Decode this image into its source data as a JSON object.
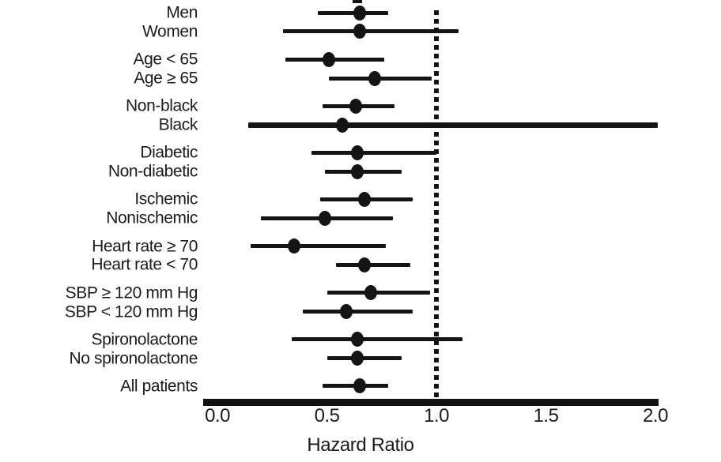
{
  "colors": {
    "ink": "#141414",
    "background": "#ffffff"
  },
  "chart_data": {
    "type": "scatter",
    "variant": "forest-plot",
    "title": "",
    "xlabel": "Hazard Ratio",
    "ylabel": "",
    "xlim": [
      -0.07,
      2.08
    ],
    "grid": false,
    "legend": "none",
    "reference_line_x": 1.0,
    "reference_line_style": "dotted",
    "x_ticks": [
      {
        "label": "0.0",
        "value": 0.0
      },
      {
        "label": "0.5",
        "value": 0.5
      },
      {
        "label": "1.0",
        "value": 1.0
      },
      {
        "label": "1.5",
        "value": 1.5
      },
      {
        "label": "2.0",
        "value": 2.0
      }
    ],
    "groups": [
      {
        "rows": [
          {
            "label": "Men",
            "hr": 0.65,
            "ci_low": 0.46,
            "ci_high": 0.78,
            "thick_line": false
          },
          {
            "label": "Women",
            "hr": 0.65,
            "ci_low": 0.3,
            "ci_high": 1.1,
            "thick_line": false
          }
        ]
      },
      {
        "rows": [
          {
            "label": "Age < 65",
            "hr": 0.51,
            "ci_low": 0.31,
            "ci_high": 0.76,
            "thick_line": false
          },
          {
            "label": "Age ≥ 65",
            "hr": 0.72,
            "ci_low": 0.51,
            "ci_high": 0.98,
            "thick_line": false
          }
        ]
      },
      {
        "rows": [
          {
            "label": "Non-black",
            "hr": 0.63,
            "ci_low": 0.48,
            "ci_high": 0.81,
            "thick_line": false
          },
          {
            "label": "Black",
            "hr": 0.57,
            "ci_low": 0.14,
            "ci_high": 2.01,
            "thick_line": true
          }
        ]
      },
      {
        "rows": [
          {
            "label": "Diabetic",
            "hr": 0.64,
            "ci_low": 0.43,
            "ci_high": 1.0,
            "thick_line": false
          },
          {
            "label": "Non-diabetic",
            "hr": 0.64,
            "ci_low": 0.49,
            "ci_high": 0.84,
            "thick_line": false
          }
        ]
      },
      {
        "rows": [
          {
            "label": "Ischemic",
            "hr": 0.67,
            "ci_low": 0.47,
            "ci_high": 0.89,
            "thick_line": false
          },
          {
            "label": "Nonischemic",
            "hr": 0.49,
            "ci_low": 0.2,
            "ci_high": 0.8,
            "thick_line": false
          }
        ]
      },
      {
        "rows": [
          {
            "label": "Heart rate ≥ 70",
            "hr": 0.35,
            "ci_low": 0.15,
            "ci_high": 0.77,
            "thick_line": false
          },
          {
            "label": "Heart rate < 70",
            "hr": 0.67,
            "ci_low": 0.54,
            "ci_high": 0.88,
            "thick_line": false
          }
        ]
      },
      {
        "rows": [
          {
            "label": "SBP ≥ 120 mm Hg",
            "hr": 0.7,
            "ci_low": 0.5,
            "ci_high": 0.97,
            "thick_line": false
          },
          {
            "label": "SBP < 120 mm Hg",
            "hr": 0.59,
            "ci_low": 0.39,
            "ci_high": 0.89,
            "thick_line": false
          }
        ]
      },
      {
        "rows": [
          {
            "label": "Spironolactone",
            "hr": 0.64,
            "ci_low": 0.34,
            "ci_high": 1.12,
            "thick_line": false
          },
          {
            "label": "No spironolactone",
            "hr": 0.64,
            "ci_low": 0.5,
            "ci_high": 0.84,
            "thick_line": false
          }
        ]
      },
      {
        "rows": [
          {
            "label": "All patients",
            "hr": 0.65,
            "ci_low": 0.48,
            "ci_high": 0.78,
            "thick_line": false
          }
        ]
      }
    ]
  }
}
